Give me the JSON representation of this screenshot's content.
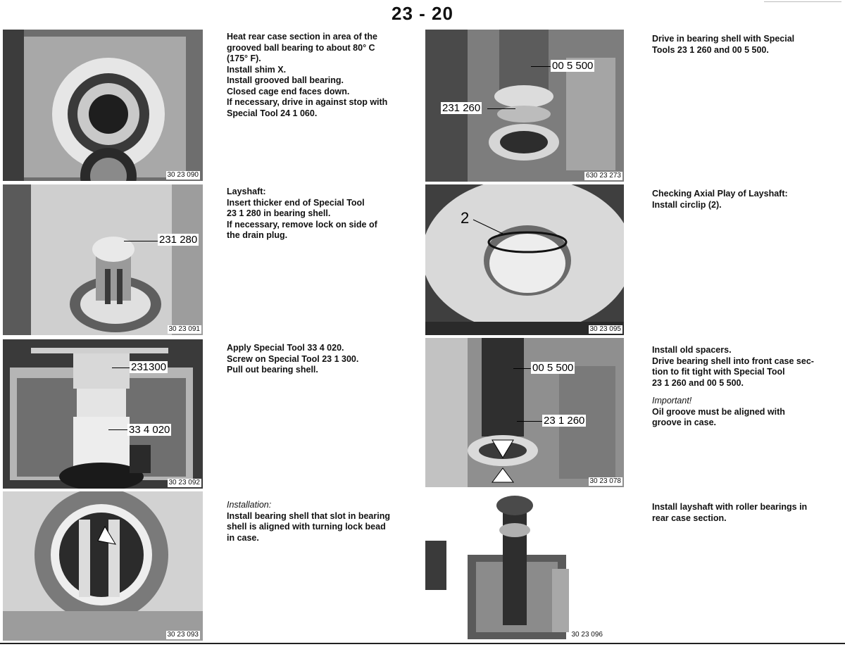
{
  "page": {
    "title": "23 - 20"
  },
  "figures": [
    {
      "id": "fig1",
      "number": "30 23 090",
      "callouts": []
    },
    {
      "id": "fig2",
      "number": "30 23 091",
      "callouts": [
        "231 280"
      ]
    },
    {
      "id": "fig3",
      "number": "30 23 092",
      "callouts": [
        "231300",
        "33 4 020"
      ]
    },
    {
      "id": "fig4",
      "number": "30 23 093",
      "callouts": []
    },
    {
      "id": "fig5",
      "number": "630 23 273",
      "callouts": [
        "00 5 500",
        "231 260"
      ]
    },
    {
      "id": "fig6",
      "number": "30 23 095",
      "callouts": [
        "2"
      ]
    },
    {
      "id": "fig7",
      "number": "30 23 078",
      "callouts": [
        "00 5 500",
        "23 1 260"
      ]
    },
    {
      "id": "fig8",
      "number": "30 23 096",
      "callouts": []
    }
  ],
  "texts": {
    "t1": [
      "Heat rear case section in area of the",
      "grooved ball bearing to about 80° C",
      "(175° F).",
      "Install shim X.",
      "Install grooved ball bearing.",
      "Closed cage end faces down.",
      "If necessary, drive in against stop with",
      "Special Tool 24 1 060."
    ],
    "t2": [
      "Layshaft:",
      "Insert thicker end of Special Tool",
      "23 1 280 in bearing shell.",
      "If necessary, remove lock on side of",
      "the drain plug."
    ],
    "t3": [
      "Apply Special Tool 33 4 020.",
      "Screw on Special Tool 23 1 300.",
      "Pull out bearing shell."
    ],
    "t4_heading": "Installation:",
    "t4": [
      "Install bearing shell that slot in bearing",
      "shell is aligned with turning lock bead",
      "in case."
    ],
    "t5": [
      "Drive in bearing shell with Special",
      "Tools 23 1 260 and 00 5 500."
    ],
    "t6": [
      "Checking Axial Play of Layshaft:",
      "Install circlip (2)."
    ],
    "t7": [
      "Install old spacers.",
      "Drive bearing shell into front case sec-",
      "tion to fit tight with Special Tool",
      "23 1 260 and 00 5 500."
    ],
    "t7_heading": "Important!",
    "t7b": [
      "Oil groove must be aligned with",
      "groove in case."
    ],
    "t8": [
      "Install layshaft with roller bearings in",
      "rear case section."
    ]
  }
}
